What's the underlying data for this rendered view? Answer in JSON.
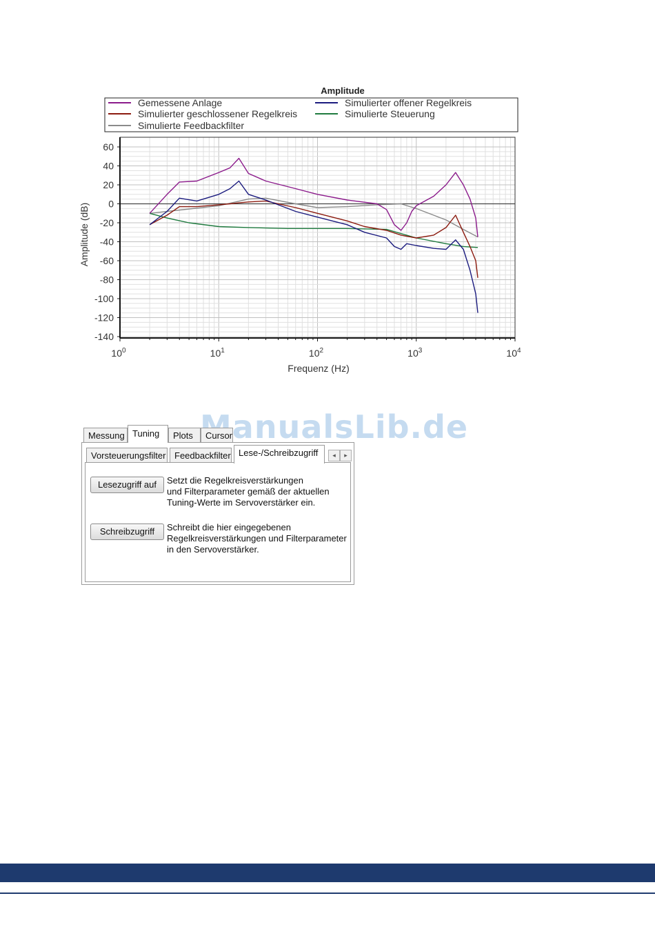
{
  "chart_data": {
    "type": "line",
    "title": "Amplitude",
    "xlabel": "Frequenz (Hz)",
    "ylabel": "Amplitude (dB)",
    "xscale": "log",
    "xlim": [
      1,
      10000
    ],
    "ylim": [
      -140,
      65
    ],
    "yticks": [
      60,
      40,
      20,
      0,
      -20,
      -40,
      -60,
      -80,
      -100,
      -120,
      -140
    ],
    "ytick_labels": [
      "60",
      "40",
      "20",
      "0",
      "-20",
      "-40",
      "-60",
      "-80",
      "-100",
      "-120",
      "-140"
    ],
    "xtick_labels": [
      {
        "base": "10",
        "exp": "0"
      },
      {
        "base": "10",
        "exp": "1"
      },
      {
        "base": "10",
        "exp": "2"
      },
      {
        "base": "10",
        "exp": "3"
      },
      {
        "base": "10",
        "exp": "4"
      }
    ],
    "grid": true,
    "legend_position": "top",
    "series": [
      {
        "name": "Gemessene Anlage",
        "color": "#8b1a8b",
        "points": [
          [
            2,
            -10
          ],
          [
            3,
            10
          ],
          [
            4,
            23
          ],
          [
            6,
            24
          ],
          [
            10,
            33
          ],
          [
            13,
            38
          ],
          [
            16,
            48
          ],
          [
            20,
            32
          ],
          [
            30,
            24
          ],
          [
            60,
            16
          ],
          [
            100,
            10
          ],
          [
            200,
            4
          ],
          [
            400,
            0
          ],
          [
            500,
            -6
          ],
          [
            600,
            -22
          ],
          [
            700,
            -28
          ],
          [
            800,
            -20
          ],
          [
            900,
            -8
          ],
          [
            1000,
            -2
          ],
          [
            1500,
            8
          ],
          [
            2000,
            20
          ],
          [
            2500,
            33
          ],
          [
            3000,
            20
          ],
          [
            3500,
            5
          ],
          [
            4000,
            -15
          ],
          [
            4200,
            -35
          ]
        ]
      },
      {
        "name": "Simulierter offener Regelkreis",
        "color": "#1a1a7e",
        "points": [
          [
            2,
            -22
          ],
          [
            3,
            -8
          ],
          [
            4,
            6
          ],
          [
            6,
            3
          ],
          [
            10,
            10
          ],
          [
            13,
            16
          ],
          [
            16,
            24
          ],
          [
            20,
            10
          ],
          [
            30,
            4
          ],
          [
            60,
            -8
          ],
          [
            100,
            -14
          ],
          [
            200,
            -22
          ],
          [
            300,
            -30
          ],
          [
            500,
            -36
          ],
          [
            600,
            -45
          ],
          [
            700,
            -48
          ],
          [
            800,
            -42
          ],
          [
            1000,
            -44
          ],
          [
            1500,
            -47
          ],
          [
            2000,
            -48
          ],
          [
            2500,
            -38
          ],
          [
            3000,
            -48
          ],
          [
            3500,
            -70
          ],
          [
            4000,
            -95
          ],
          [
            4200,
            -115
          ]
        ]
      },
      {
        "name": "Simulierter geschlossener Regelkreis",
        "color": "#8b1a0e",
        "points": [
          [
            2,
            -22
          ],
          [
            3,
            -12
          ],
          [
            4,
            -3
          ],
          [
            6,
            -3
          ],
          [
            10,
            -1
          ],
          [
            13,
            0
          ],
          [
            16,
            1
          ],
          [
            20,
            2
          ],
          [
            30,
            3
          ],
          [
            40,
            0
          ],
          [
            60,
            -4
          ],
          [
            100,
            -10
          ],
          [
            200,
            -18
          ],
          [
            300,
            -24
          ],
          [
            500,
            -28
          ],
          [
            700,
            -33
          ],
          [
            1000,
            -36
          ],
          [
            1500,
            -33
          ],
          [
            2000,
            -25
          ],
          [
            2500,
            -12
          ],
          [
            3000,
            -30
          ],
          [
            3500,
            -45
          ],
          [
            4000,
            -60
          ],
          [
            4200,
            -78
          ]
        ]
      },
      {
        "name": "Simulierte Steuerung",
        "color": "#1e7a3e",
        "points": [
          [
            2,
            -10
          ],
          [
            3,
            -15
          ],
          [
            5,
            -20
          ],
          [
            10,
            -24
          ],
          [
            20,
            -25
          ],
          [
            50,
            -26
          ],
          [
            100,
            -26
          ],
          [
            200,
            -26
          ],
          [
            500,
            -27
          ],
          [
            1000,
            -36
          ],
          [
            2000,
            -42
          ],
          [
            3000,
            -45
          ],
          [
            4200,
            -46
          ]
        ]
      },
      {
        "name": "Simulierte Feedbackfilter",
        "color": "#8a8a8a",
        "points": [
          [
            2,
            -10
          ],
          [
            10,
            -2
          ],
          [
            20,
            5
          ],
          [
            30,
            6
          ],
          [
            60,
            0
          ],
          [
            100,
            -4
          ],
          [
            200,
            -3
          ],
          [
            400,
            -1
          ],
          [
            700,
            0
          ],
          [
            1000,
            -5
          ],
          [
            1500,
            -12
          ],
          [
            2000,
            -17
          ],
          [
            3000,
            -27
          ],
          [
            4200,
            -35
          ]
        ]
      }
    ]
  },
  "panel": {
    "top_tabs": [
      "Messung",
      "Tuning",
      "Plots",
      "Cursor"
    ],
    "active_top_tab": "Tuning",
    "sub_tabs": [
      "Vorsteuerungsfilter",
      "Feedbackfilter",
      "Lese-/Schreibzugriff"
    ],
    "active_sub_tab": "Lese-/Schreibzugriff",
    "scroll_left_icon": "◂",
    "scroll_right_icon": "▸",
    "read_button": "Lesezugriff auf",
    "read_desc": [
      "Setzt die Regelkreisverstärkungen",
      "und Filterparameter gemäß der aktuellen",
      "Tuning-Werte im Servoverstärker ein."
    ],
    "write_button": "Schreibzugriff",
    "write_desc": [
      "Schreibt die hier eingegebenen",
      "Regelkreisverstärkungen und Filterparameter",
      "in den Servoverstärker."
    ]
  },
  "watermark": "ManualsLib.de",
  "colors": {
    "footer": "#1e3a6e",
    "grid_major": "#c0c0c0",
    "grid_minor": "#e0e0e0"
  }
}
